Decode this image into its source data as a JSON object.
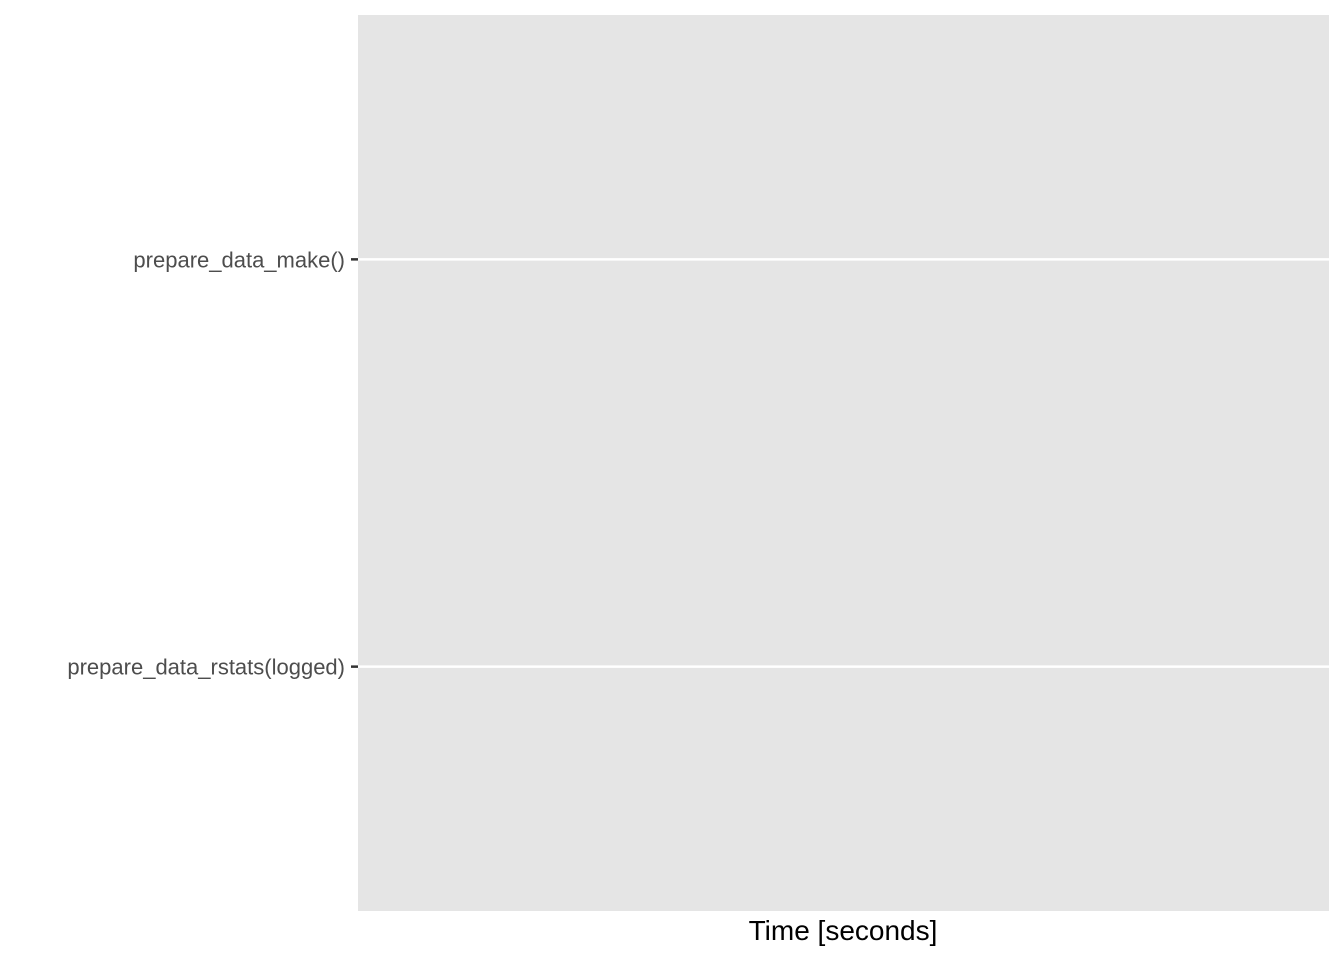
{
  "chart_data": {
    "type": "scatter",
    "xlabel": "Time [seconds]",
    "ylabel": "",
    "categories": [
      "prepare_data_make()",
      "prepare_data_rstats(logged)"
    ],
    "series": [],
    "grid": true,
    "legend": "none",
    "colors": {
      "panel_background": "#e5e5e5",
      "gridline": "#ffffff",
      "tick_label": "#4d4d4d",
      "tick_mark": "#333333",
      "axis_title": "#000000"
    }
  }
}
